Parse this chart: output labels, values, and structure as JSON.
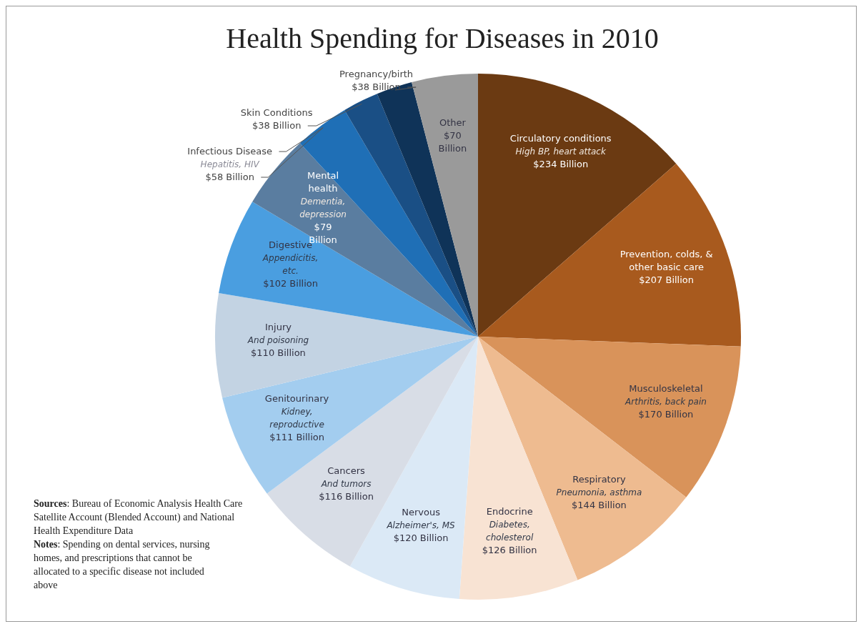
{
  "chart_data": {
    "type": "pie",
    "title": "Health Spending for Diseases in 2010",
    "categories": [
      "Circulatory conditions",
      "Prevention, colds, & other basic care",
      "Musculoskeletal",
      "Respiratory",
      "Endocrine",
      "Nervous",
      "Cancers",
      "Genitourinary",
      "Injury",
      "Digestive",
      "Mental health",
      "Infectious Disease",
      "Skin Conditions",
      "Pregnancy/birth",
      "Other"
    ],
    "values": [
      234,
      207,
      170,
      144,
      126,
      120,
      116,
      111,
      110,
      102,
      79,
      58,
      38,
      38,
      70
    ],
    "value_labels": [
      "$234 Billion",
      "$207 Billion",
      "$170 Billion",
      "$144 Billion",
      "$126 Billion",
      "$120 Billion",
      "$116 Billion",
      "$111 Billion",
      "$110 Billion",
      "$102 Billion",
      "$79 Billion",
      "$58 Billion",
      "$38 Billion",
      "$38 Billion",
      "$70 Billion"
    ],
    "colors": [
      "#6b3a12",
      "#a85a1e",
      "#d9935a",
      "#eebb90",
      "#f8e3d3",
      "#dbe9f6",
      "#d8dde6",
      "#a3cdef",
      "#c3d3e3",
      "#4a9ee0",
      "#5a7da0",
      "#1f6fb6",
      "#1a4f85",
      "#0f3358",
      "#9a9a9a"
    ],
    "annotations": [
      {
        "text": "High BP, heart attack",
        "x": "Circulatory conditions"
      },
      {
        "text": "Arthritis, back pain",
        "x": "Musculoskeletal"
      },
      {
        "text": "Pneumonia, asthma",
        "x": "Respiratory"
      },
      {
        "text": "Diabetes, cholesterol",
        "x": "Endocrine"
      },
      {
        "text": "Alzheimer's, MS",
        "x": "Nervous"
      },
      {
        "text": "And tumors",
        "x": "Cancers"
      },
      {
        "text": "Kidney, reproductive",
        "x": "Genitourinary"
      },
      {
        "text": "And poisoning",
        "x": "Injury"
      },
      {
        "text": "Appendicitis, etc.",
        "x": "Digestive"
      },
      {
        "text": "Dementia, depression",
        "x": "Mental health"
      },
      {
        "text": "Hepatitis, HIV",
        "x": "Infectious Disease"
      },
      "Sources: Bureau of Economic Analysis Health Care Satellite Account (Blended Account) and National Health Expenditure Data",
      "Notes: Spending on dental services, nursing homes, and prescriptions that cannot be allocated to a specific disease not included above"
    ]
  }
}
